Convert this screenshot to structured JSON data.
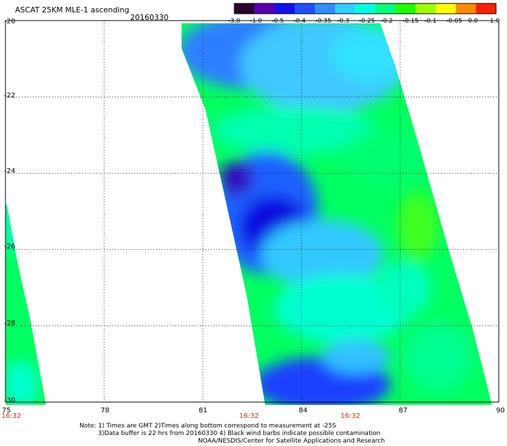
{
  "header": {
    "title": "ASCAT 25KM MLE-1 ascending",
    "date": "20160330"
  },
  "colorbar": {
    "labels": [
      "-3.0",
      "-1.0",
      "-0.5",
      "-0.4",
      "-0.35",
      "-0.3",
      "-0.25",
      "-0.2",
      "-0.15",
      "-0.1",
      "-0.05",
      "0.0",
      "1.0"
    ],
    "colors": [
      "#2a0030",
      "#5a00b0",
      "#1010f0",
      "#1e50ff",
      "#2f8fff",
      "#30d0ff",
      "#00ffe0",
      "#00ff7a",
      "#1aff00",
      "#9cff00",
      "#ffff00",
      "#ff8a00",
      "#ff2000"
    ]
  },
  "map": {
    "lat_labels": [
      "-20",
      "-22",
      "-24",
      "-26",
      "-28",
      "-30"
    ],
    "lon_labels": [
      "75",
      "78",
      "81",
      "84",
      "87",
      "90"
    ],
    "time_labels": [
      "16:32",
      "16:32",
      "16:32"
    ]
  },
  "footer": {
    "line1": "Note: 1) Times are GMT 2)Times along bottom correspond to measurement at -25S",
    "line2": "3)Data buffer is 22 hrs from 20160330 4) Black wind barbs indicate possible contamination",
    "line3": "NOAA/NESDIS/Center for Satellite Applications and Research"
  }
}
